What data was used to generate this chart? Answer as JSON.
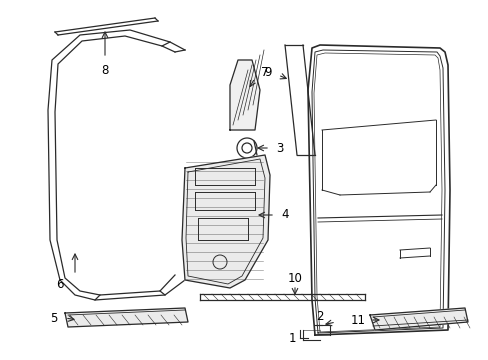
{
  "background_color": "#ffffff",
  "line_color": "#2a2a2a",
  "label_color": "#000000",
  "fig_width": 4.89,
  "fig_height": 3.6,
  "dpi": 100
}
